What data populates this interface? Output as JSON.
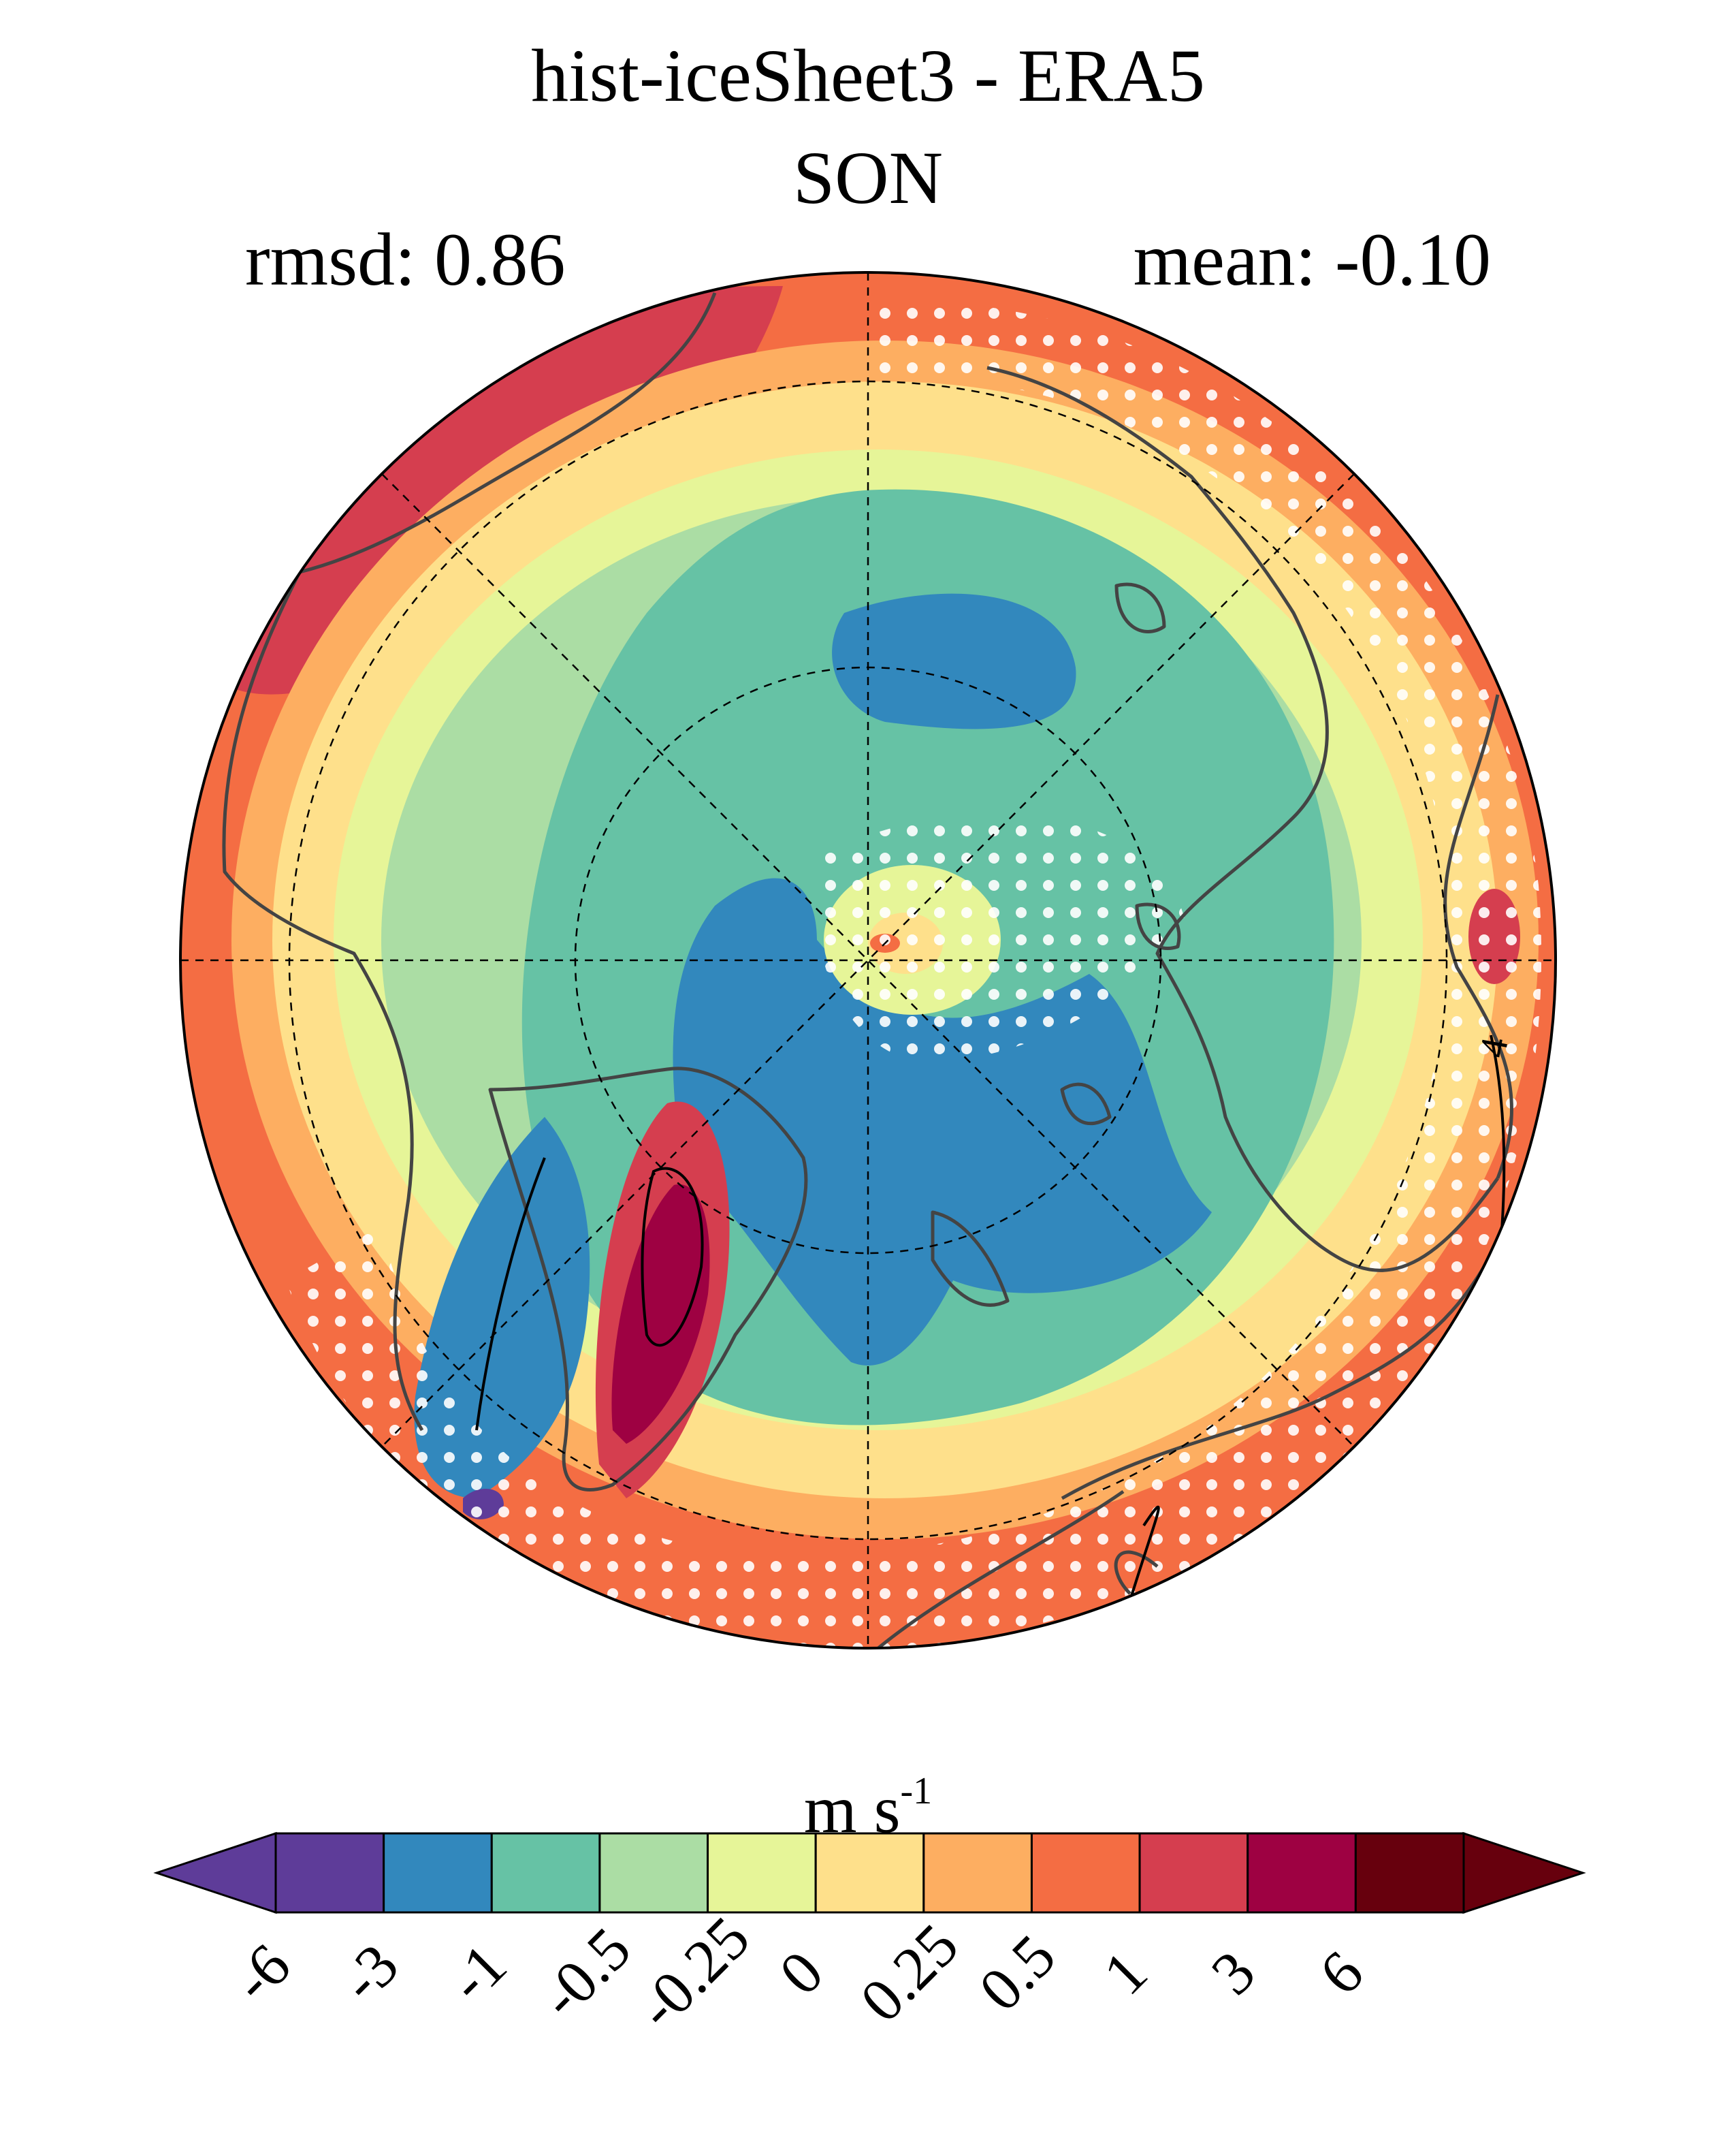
{
  "title": "hist-iceSheet3 - ERA5",
  "subtitle": "SON",
  "stats": {
    "rmsd": "rmsd: 0.86",
    "mean": "mean: -0.10"
  },
  "units": {
    "base": "m s",
    "exp": "-1"
  },
  "colorbar": {
    "ticks": [
      "-6",
      "-3",
      "-1",
      "-0.5",
      "-0.25",
      "0",
      "0.25",
      "0.5",
      "1",
      "3",
      "6"
    ],
    "colors": [
      "#5e3c99",
      "#3288bd",
      "#66c2a5",
      "#abdda4",
      "#e6f598",
      "#fee08b",
      "#fdae61",
      "#f46d43",
      "#d53e4f",
      "#9e0142",
      "#67000d"
    ],
    "under_color": "#5e3c99",
    "over_color": "#67000d",
    "extend": "both"
  },
  "map": {
    "projection": "north polar stereographic",
    "contour_label": "4",
    "colors": {
      "strong_pos": "#d53e4f",
      "mod_pos": "#f46d43",
      "weak_pos": "#fdae61",
      "near_pos": "#fee08b",
      "near_neg": "#e6f598",
      "weak_neg": "#abdda4",
      "mod_neg": "#66c2a5",
      "strong_neg": "#3288bd",
      "extreme_pos": "#9e0142",
      "extreme_neg": "#5e3c99",
      "coast": "#444444",
      "stipple": "#ffffff"
    }
  }
}
